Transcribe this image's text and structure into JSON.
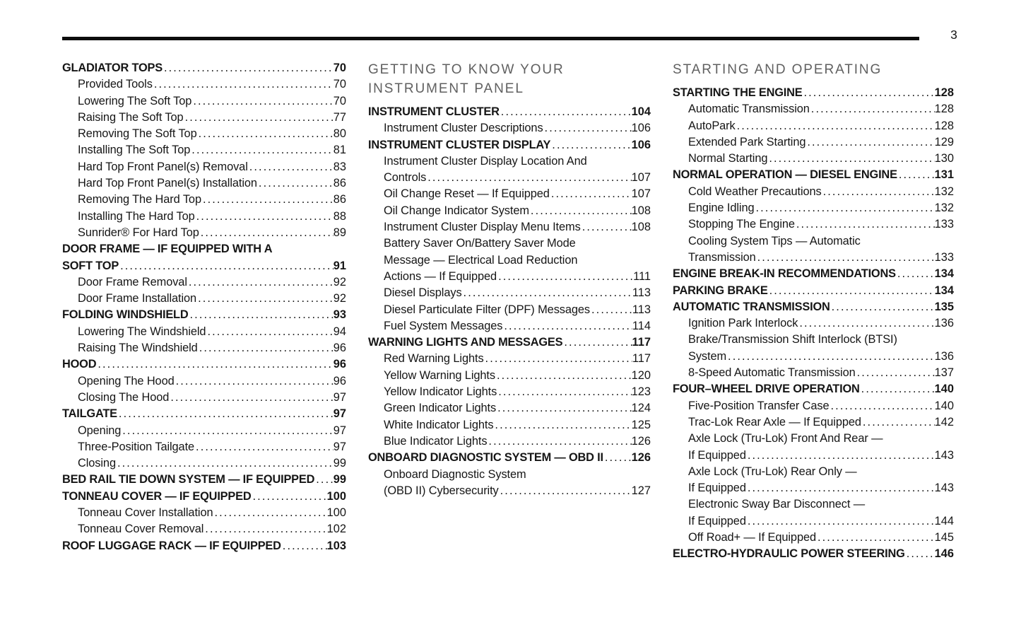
{
  "page": {
    "number": "3"
  },
  "colors": {
    "text": "#161616",
    "section_header": "#606060",
    "rule": "#0d0d0d"
  },
  "columns": [
    {
      "header_lines": [],
      "entries": [
        {
          "level": "main",
          "lines": [
            "GLADIATOR TOPS"
          ],
          "page": "70"
        },
        {
          "level": "sub",
          "lines": [
            "Provided Tools"
          ],
          "page": "70"
        },
        {
          "level": "sub",
          "lines": [
            "Lowering The Soft Top"
          ],
          "page": "70"
        },
        {
          "level": "sub",
          "lines": [
            "Raising The Soft Top"
          ],
          "page": "77"
        },
        {
          "level": "sub",
          "lines": [
            "Removing The Soft Top"
          ],
          "page": "80"
        },
        {
          "level": "sub",
          "lines": [
            "Installing The Soft Top"
          ],
          "page": "81"
        },
        {
          "level": "sub",
          "lines": [
            "Hard Top Front Panel(s) Removal"
          ],
          "page": "83"
        },
        {
          "level": "sub",
          "lines": [
            "Hard Top Front Panel(s) Installation"
          ],
          "page": "86"
        },
        {
          "level": "sub",
          "lines": [
            "Removing The Hard Top"
          ],
          "page": "86"
        },
        {
          "level": "sub",
          "lines": [
            "Installing The Hard Top"
          ],
          "page": "88"
        },
        {
          "level": "sub",
          "lines": [
            "Sunrider® For Hard Top"
          ],
          "page": "89"
        },
        {
          "level": "main",
          "lines": [
            "DOOR FRAME — IF EQUIPPED WITH A",
            "SOFT TOP"
          ],
          "page": "91"
        },
        {
          "level": "sub",
          "lines": [
            "Door Frame Removal"
          ],
          "page": "92"
        },
        {
          "level": "sub",
          "lines": [
            "Door Frame Installation"
          ],
          "page": "92"
        },
        {
          "level": "main",
          "lines": [
            "FOLDING WINDSHIELD"
          ],
          "page": "93"
        },
        {
          "level": "sub",
          "lines": [
            "Lowering The Windshield"
          ],
          "page": "94"
        },
        {
          "level": "sub",
          "lines": [
            "Raising The Windshield"
          ],
          "page": "96"
        },
        {
          "level": "main",
          "lines": [
            "HOOD"
          ],
          "page": "96"
        },
        {
          "level": "sub",
          "lines": [
            "Opening The Hood"
          ],
          "page": "96"
        },
        {
          "level": "sub",
          "lines": [
            "Closing The Hood"
          ],
          "page": "97"
        },
        {
          "level": "main",
          "lines": [
            "TAILGATE"
          ],
          "page": "97"
        },
        {
          "level": "sub",
          "lines": [
            "Opening"
          ],
          "page": "97"
        },
        {
          "level": "sub",
          "lines": [
            "Three-Position Tailgate"
          ],
          "page": "97"
        },
        {
          "level": "sub",
          "lines": [
            "Closing"
          ],
          "page": "99"
        },
        {
          "level": "main",
          "lines": [
            "BED RAIL TIE DOWN SYSTEM — IF EQUIPPED"
          ],
          "page": "99"
        },
        {
          "level": "main",
          "lines": [
            "TONNEAU COVER — IF EQUIPPED"
          ],
          "page": "100"
        },
        {
          "level": "sub",
          "lines": [
            "Tonneau Cover Installation"
          ],
          "page": "100"
        },
        {
          "level": "sub",
          "lines": [
            "Tonneau Cover Removal"
          ],
          "page": "102"
        },
        {
          "level": "main",
          "lines": [
            "ROOF LUGGAGE RACK — IF EQUIPPED"
          ],
          "page": "103"
        }
      ]
    },
    {
      "header_lines": [
        "GETTING TO KNOW YOUR",
        "INSTRUMENT PANEL"
      ],
      "entries": [
        {
          "level": "main",
          "lines": [
            "INSTRUMENT CLUSTER"
          ],
          "page": "104"
        },
        {
          "level": "sub",
          "lines": [
            "Instrument Cluster Descriptions"
          ],
          "page": "106"
        },
        {
          "level": "main",
          "lines": [
            "INSTRUMENT CLUSTER DISPLAY"
          ],
          "page": "106"
        },
        {
          "level": "sub",
          "lines": [
            "Instrument Cluster Display Location And",
            "Controls"
          ],
          "page": "107"
        },
        {
          "level": "sub",
          "lines": [
            "Oil Change Reset — If Equipped"
          ],
          "page": "107"
        },
        {
          "level": "sub",
          "lines": [
            "Oil Change Indicator System"
          ],
          "page": "108"
        },
        {
          "level": "sub",
          "lines": [
            "Instrument Cluster Display Menu Items"
          ],
          "page": "108"
        },
        {
          "level": "sub",
          "lines": [
            "Battery Saver On/Battery Saver Mode",
            "Message — Electrical Load Reduction",
            "Actions — If Equipped"
          ],
          "page": "111"
        },
        {
          "level": "sub",
          "lines": [
            "Diesel Displays"
          ],
          "page": "113"
        },
        {
          "level": "sub",
          "lines": [
            "Diesel Particulate Filter (DPF) Messages"
          ],
          "page": "113"
        },
        {
          "level": "sub",
          "lines": [
            "Fuel System Messages"
          ],
          "page": "114"
        },
        {
          "level": "main",
          "lines": [
            "WARNING LIGHTS AND MESSAGES"
          ],
          "page": "117"
        },
        {
          "level": "sub",
          "lines": [
            "Red Warning Lights"
          ],
          "page": "117"
        },
        {
          "level": "sub",
          "lines": [
            "Yellow Warning Lights"
          ],
          "page": "120"
        },
        {
          "level": "sub",
          "lines": [
            "Yellow Indicator Lights"
          ],
          "page": "123"
        },
        {
          "level": "sub",
          "lines": [
            "Green Indicator Lights"
          ],
          "page": "124"
        },
        {
          "level": "sub",
          "lines": [
            "White Indicator Lights"
          ],
          "page": "125"
        },
        {
          "level": "sub",
          "lines": [
            "Blue Indicator Lights"
          ],
          "page": "126"
        },
        {
          "level": "main",
          "lines": [
            "ONBOARD DIAGNOSTIC SYSTEM — OBD II"
          ],
          "page": "126"
        },
        {
          "level": "sub",
          "lines": [
            "Onboard Diagnostic System",
            "(OBD II) Cybersecurity"
          ],
          "page": "127"
        }
      ]
    },
    {
      "header_lines": [
        "STARTING AND OPERATING"
      ],
      "entries": [
        {
          "level": "main",
          "lines": [
            "STARTING THE ENGINE"
          ],
          "page": "128"
        },
        {
          "level": "sub",
          "lines": [
            "Automatic Transmission"
          ],
          "page": "128"
        },
        {
          "level": "sub",
          "lines": [
            "AutoPark"
          ],
          "page": "128"
        },
        {
          "level": "sub",
          "lines": [
            "Extended Park Starting"
          ],
          "page": "129"
        },
        {
          "level": "sub",
          "lines": [
            "Normal Starting"
          ],
          "page": "130"
        },
        {
          "level": "main",
          "lines": [
            "NORMAL OPERATION — DIESEL ENGINE"
          ],
          "page": "131"
        },
        {
          "level": "sub",
          "lines": [
            "Cold Weather Precautions"
          ],
          "page": "132"
        },
        {
          "level": "sub",
          "lines": [
            "Engine Idling"
          ],
          "page": "132"
        },
        {
          "level": "sub",
          "lines": [
            "Stopping The Engine"
          ],
          "page": "133"
        },
        {
          "level": "sub",
          "lines": [
            "Cooling System Tips — Automatic",
            "Transmission"
          ],
          "page": "133"
        },
        {
          "level": "main",
          "lines": [
            "ENGINE BREAK-IN RECOMMENDATIONS"
          ],
          "page": "134"
        },
        {
          "level": "main",
          "lines": [
            "PARKING BRAKE"
          ],
          "page": "134"
        },
        {
          "level": "main",
          "lines": [
            "AUTOMATIC TRANSMISSION"
          ],
          "page": "135"
        },
        {
          "level": "sub",
          "lines": [
            "Ignition Park Interlock"
          ],
          "page": "136"
        },
        {
          "level": "sub",
          "lines": [
            "Brake/Transmission Shift Interlock (BTSI)",
            "System"
          ],
          "page": "136"
        },
        {
          "level": "sub",
          "lines": [
            "8-Speed Automatic Transmission"
          ],
          "page": "137"
        },
        {
          "level": "main",
          "lines": [
            "FOUR–WHEEL DRIVE OPERATION"
          ],
          "page": "140"
        },
        {
          "level": "sub",
          "lines": [
            "Five-Position Transfer Case"
          ],
          "page": "140"
        },
        {
          "level": "sub",
          "lines": [
            "Trac-Lok Rear Axle — If Equipped"
          ],
          "page": "142"
        },
        {
          "level": "sub",
          "lines": [
            "Axle Lock (Tru-Lok) Front And Rear —",
            "If Equipped"
          ],
          "page": "143"
        },
        {
          "level": "sub",
          "lines": [
            "Axle Lock (Tru-Lok) Rear Only —",
            "If Equipped"
          ],
          "page": "143"
        },
        {
          "level": "sub",
          "lines": [
            "Electronic Sway Bar Disconnect —",
            "If Equipped"
          ],
          "page": "144"
        },
        {
          "level": "sub",
          "lines": [
            "Off Road+ — If Equipped"
          ],
          "page": "145"
        },
        {
          "level": "main",
          "lines": [
            "ELECTRO-HYDRAULIC POWER STEERING"
          ],
          "page": "146"
        }
      ]
    }
  ]
}
